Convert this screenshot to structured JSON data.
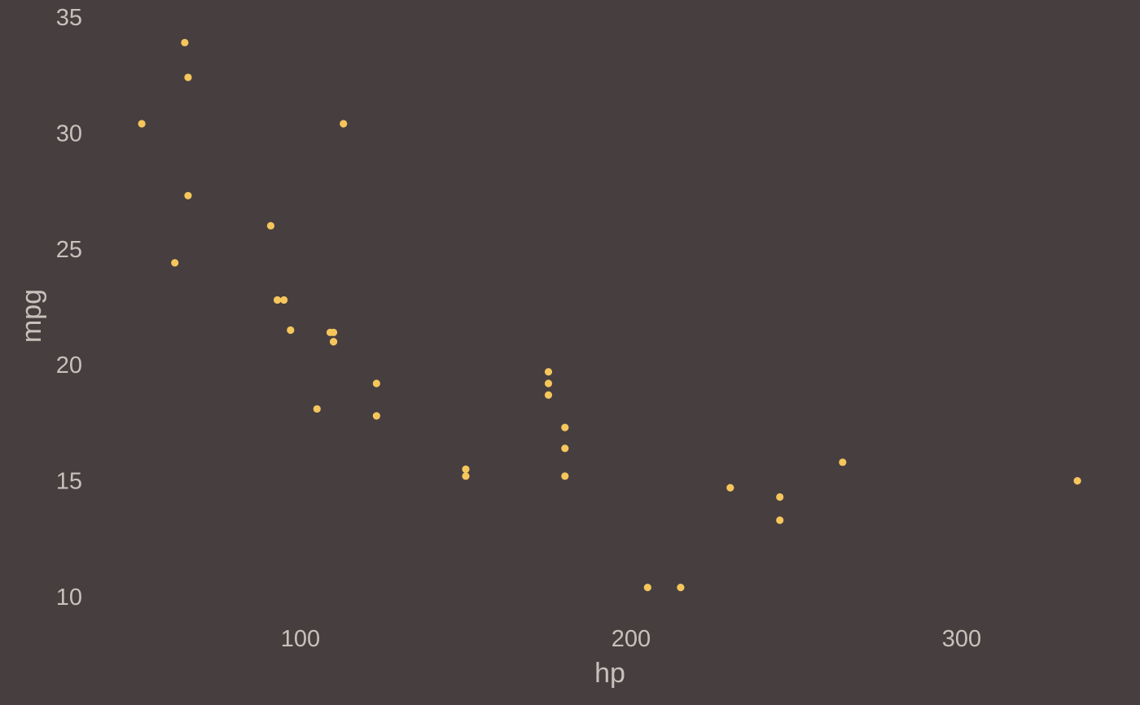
{
  "chart_data": {
    "type": "scatter",
    "title": "",
    "xlabel": "hp",
    "ylabel": "mpg",
    "xlim": [
      45,
      345
    ],
    "ylim": [
      9,
      35
    ],
    "x_ticks": [
      100,
      200,
      300
    ],
    "y_ticks": [
      10,
      15,
      20,
      25,
      30,
      35
    ],
    "grid": false,
    "legend": "none",
    "colors": {
      "background": "#473e3f",
      "point": "#f5c65c",
      "text": "#c9c0bb"
    },
    "points": [
      {
        "x": 110,
        "y": 21.0
      },
      {
        "x": 110,
        "y": 21.0
      },
      {
        "x": 93,
        "y": 22.8
      },
      {
        "x": 110,
        "y": 21.4
      },
      {
        "x": 175,
        "y": 18.7
      },
      {
        "x": 105,
        "y": 18.1
      },
      {
        "x": 245,
        "y": 14.3
      },
      {
        "x": 62,
        "y": 24.4
      },
      {
        "x": 95,
        "y": 22.8
      },
      {
        "x": 123,
        "y": 19.2
      },
      {
        "x": 123,
        "y": 17.8
      },
      {
        "x": 180,
        "y": 16.4
      },
      {
        "x": 180,
        "y": 17.3
      },
      {
        "x": 180,
        "y": 15.2
      },
      {
        "x": 205,
        "y": 10.4
      },
      {
        "x": 215,
        "y": 10.4
      },
      {
        "x": 230,
        "y": 14.7
      },
      {
        "x": 66,
        "y": 32.4
      },
      {
        "x": 52,
        "y": 30.4
      },
      {
        "x": 65,
        "y": 33.9
      },
      {
        "x": 97,
        "y": 21.5
      },
      {
        "x": 150,
        "y": 15.5
      },
      {
        "x": 150,
        "y": 15.2
      },
      {
        "x": 245,
        "y": 13.3
      },
      {
        "x": 175,
        "y": 19.2
      },
      {
        "x": 66,
        "y": 27.3
      },
      {
        "x": 91,
        "y": 26.0
      },
      {
        "x": 113,
        "y": 30.4
      },
      {
        "x": 264,
        "y": 15.8
      },
      {
        "x": 175,
        "y": 19.7
      },
      {
        "x": 335,
        "y": 15.0
      },
      {
        "x": 109,
        "y": 21.4
      }
    ]
  }
}
